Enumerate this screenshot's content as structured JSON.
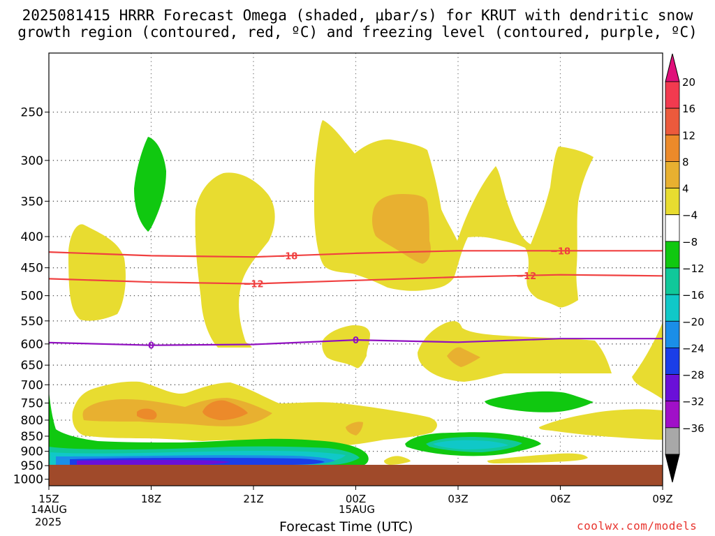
{
  "title_line1": "2025081415 HRRR Forecast Omega (shaded, μbar/s) for KRUT with dendritic snow",
  "title_line2": "growth region (contoured, red, ºC) and freezing level (contoured, purple, ºC)",
  "credit": "coolwx.com/models",
  "chart_data": {
    "type": "heatmap",
    "xlabel": "Forecast Time (UTC)",
    "ylabel": "",
    "x_ticks": [
      "15Z",
      "18Z",
      "21Z",
      "00Z",
      "03Z",
      "06Z",
      "09Z"
    ],
    "x_sublabels": [
      {
        "tick": "15Z",
        "lines": [
          "14AUG",
          "2025"
        ]
      },
      {
        "tick": "00Z",
        "lines": [
          "15AUG"
        ]
      }
    ],
    "x_range": [
      "15Z 14AUG 2025",
      "09Z 15AUG 2025"
    ],
    "y_ticks": [
      250,
      300,
      350,
      400,
      450,
      500,
      550,
      600,
      650,
      700,
      750,
      800,
      850,
      900,
      950,
      1000
    ],
    "y_range_hpa": [
      200,
      1025
    ],
    "y_scale": "log",
    "grid": true,
    "colorbar": {
      "labels": [
        "20",
        "16",
        "12",
        "8",
        "4",
        "−4",
        "−8",
        "−12",
        "−16",
        "−20",
        "−24",
        "−28",
        "−32",
        "−36"
      ],
      "levels": [
        20,
        16,
        12,
        8,
        4,
        -4,
        -8,
        -12,
        -16,
        -20,
        -24,
        -28,
        -32,
        -36
      ],
      "colors": [
        "#f23a4f",
        "#ec5a3c",
        "#ec8a2a",
        "#e8b030",
        "#e8dc30",
        "#ffffff",
        "#10c810",
        "#10c89a",
        "#10c8c8",
        "#1a8ee8",
        "#1a3ee8",
        "#6a10d8",
        "#a010c8",
        "#a8a8a8"
      ],
      "top_arrow_color": "#e0107a",
      "bottom_arrow_color": "#000000"
    },
    "contours": [
      {
        "label": "−18",
        "color": "#f04040",
        "x_h": [
          0,
          3,
          6,
          9,
          12,
          15,
          18
        ],
        "p_hpa": [
          424,
          430,
          432,
          426,
          422,
          422,
          422
        ]
      },
      {
        "label": "−12",
        "color": "#f04040",
        "x_h": [
          0,
          3,
          6,
          9,
          12,
          15,
          18
        ],
        "p_hpa": [
          469,
          475,
          478,
          472,
          466,
          462,
          464
        ]
      },
      {
        "label": "0",
        "color": "#9010c0",
        "x_h": [
          0,
          3,
          6,
          9,
          12,
          15,
          18
        ],
        "p_hpa": [
          597,
          603,
          601,
          591,
          596,
          588,
          588
        ]
      }
    ],
    "ground_color": "#a04a2a"
  }
}
